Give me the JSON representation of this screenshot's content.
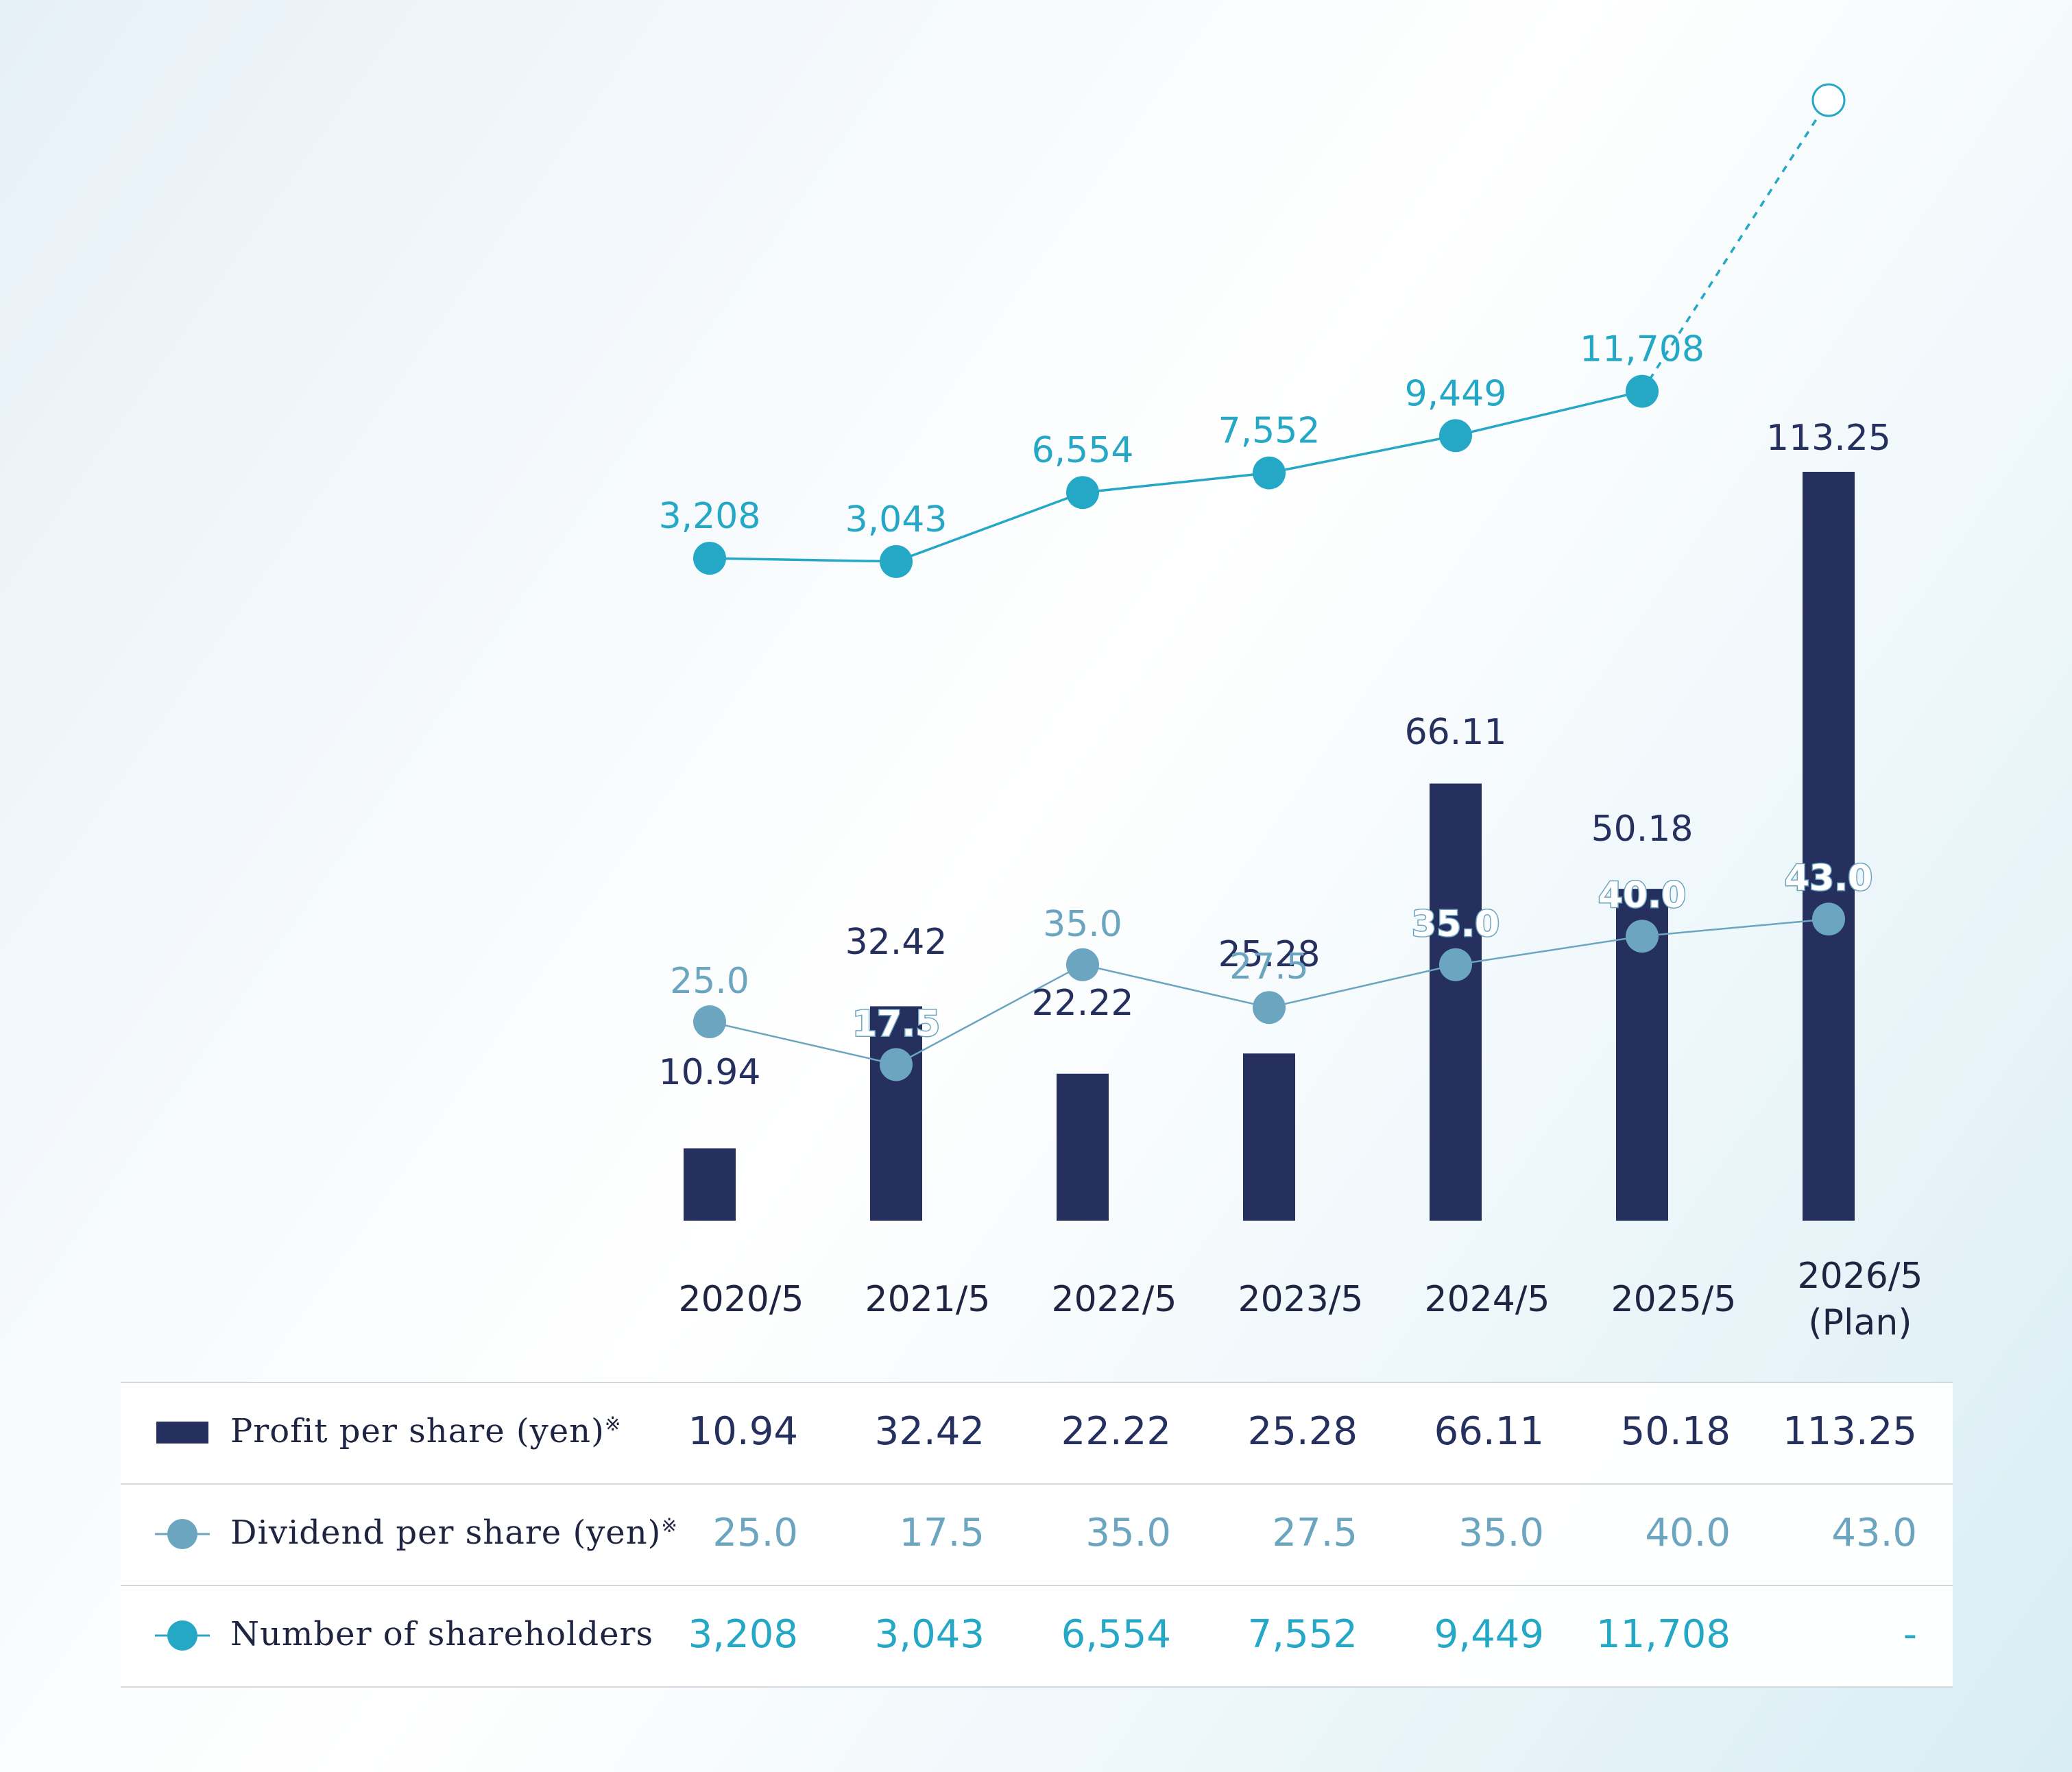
{
  "chart_data": {
    "type": "bar",
    "categories": [
      "2020/5",
      "2021/5",
      "2022/5",
      "2023/5",
      "2024/5",
      "2025/5",
      "2026/5"
    ],
    "category_sublabels": [
      "",
      "",
      "",
      "",
      "",
      "",
      "(Plan)"
    ],
    "series": [
      {
        "name": "Profit per share (yen)",
        "type": "bar",
        "values": [
          10.94,
          32.42,
          22.22,
          25.28,
          66.11,
          50.18,
          113.25
        ],
        "labels": [
          "10.94",
          "32.42",
          "22.22",
          "25.28",
          "66.11",
          "50.18",
          "113.25"
        ],
        "color": "#25305f"
      },
      {
        "name": "Dividend per share (yen)",
        "type": "line",
        "values": [
          25.0,
          17.5,
          35.0,
          27.5,
          35.0,
          40.0,
          43.0
        ],
        "labels": [
          "25.0",
          "17.5",
          "35.0",
          "27.5",
          "35.0",
          "40.0",
          "43.0"
        ],
        "color": "#6ba5c0"
      },
      {
        "name": "Number of shareholders",
        "type": "line",
        "values": [
          3208,
          3043,
          6554,
          7552,
          9449,
          11708,
          null
        ],
        "labels": [
          "3,208",
          "3,043",
          "6,554",
          "7,552",
          "9,449",
          "11,708",
          null
        ],
        "color": "#24a8c6",
        "plan_marker": "hollow-circle-dashed"
      }
    ],
    "title": "",
    "xlabel": "",
    "ylabel": "",
    "grid": false,
    "legend": "table-below"
  },
  "table": {
    "rows": [
      {
        "key": "profit",
        "label": "Profit per share (yen)",
        "note_mark": "※",
        "values": [
          "10.94",
          "32.42",
          "22.22",
          "25.28",
          "66.11",
          "50.18",
          "113.25"
        ]
      },
      {
        "key": "dividend",
        "label": "Dividend per share (yen)",
        "note_mark": "※",
        "values": [
          "25.0",
          "17.5",
          "35.0",
          "27.5",
          "35.0",
          "40.0",
          "43.0"
        ]
      },
      {
        "key": "shareholders",
        "label": "Number of shareholders",
        "note_mark": "",
        "values": [
          "3,208",
          "3,043",
          "6,554",
          "7,552",
          "9,449",
          "11,708",
          "-"
        ]
      }
    ]
  }
}
